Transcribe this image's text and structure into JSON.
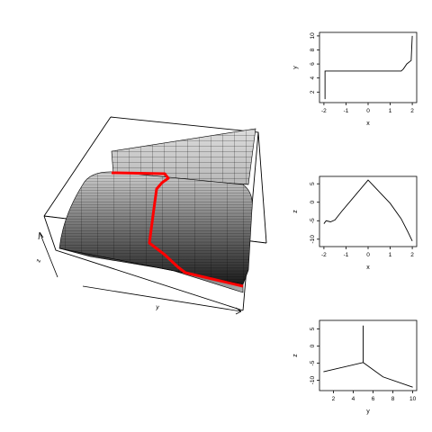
{
  "perspective": {
    "axis_labels": {
      "x": "y",
      "z": "z"
    },
    "path_color": "#ff0000"
  },
  "chart_data": [
    {
      "type": "line",
      "title": "",
      "xlabel": "x",
      "ylabel": "y",
      "xlim": [
        -2.2,
        2.2
      ],
      "ylim": [
        0.5,
        10.5
      ],
      "xticks": [
        -2,
        -1,
        0,
        1,
        2
      ],
      "yticks": [
        2,
        4,
        6,
        8,
        10
      ],
      "x": [
        -1.95,
        -1.95,
        1.5,
        1.6,
        1.75,
        1.95,
        1.97,
        2.0
      ],
      "y": [
        1.0,
        5.0,
        5.0,
        5.3,
        6.0,
        6.5,
        8.0,
        10.0
      ]
    },
    {
      "type": "line",
      "title": "",
      "xlabel": "x",
      "ylabel": "z",
      "xlim": [
        -2.2,
        2.2
      ],
      "ylim": [
        -12,
        7
      ],
      "xticks": [
        -2,
        -1,
        0,
        1,
        2
      ],
      "yticks": [
        -10,
        -5,
        0,
        5
      ],
      "x": [
        -2.0,
        -1.9,
        -1.7,
        -1.5,
        -1.2,
        0.0,
        1.0,
        1.5,
        1.8,
        2.0
      ],
      "y": [
        -5.8,
        -5.0,
        -5.3,
        -4.8,
        -2.5,
        6.0,
        -0.3,
        -4.5,
        -8.0,
        -10.5
      ]
    },
    {
      "type": "line",
      "title": "",
      "xlabel": "y",
      "ylabel": "z",
      "xlim": [
        0.6,
        10.4
      ],
      "ylim": [
        -13,
        7.5
      ],
      "xticks": [
        2,
        4,
        6,
        8,
        10
      ],
      "yticks": [
        -10,
        -5,
        0,
        5
      ],
      "x": [
        1.0,
        5.0,
        5.0,
        5.0,
        7.0,
        10.0
      ],
      "y": [
        -7.5,
        -4.8,
        6.0,
        -4.8,
        -9.0,
        -12.0
      ]
    }
  ]
}
